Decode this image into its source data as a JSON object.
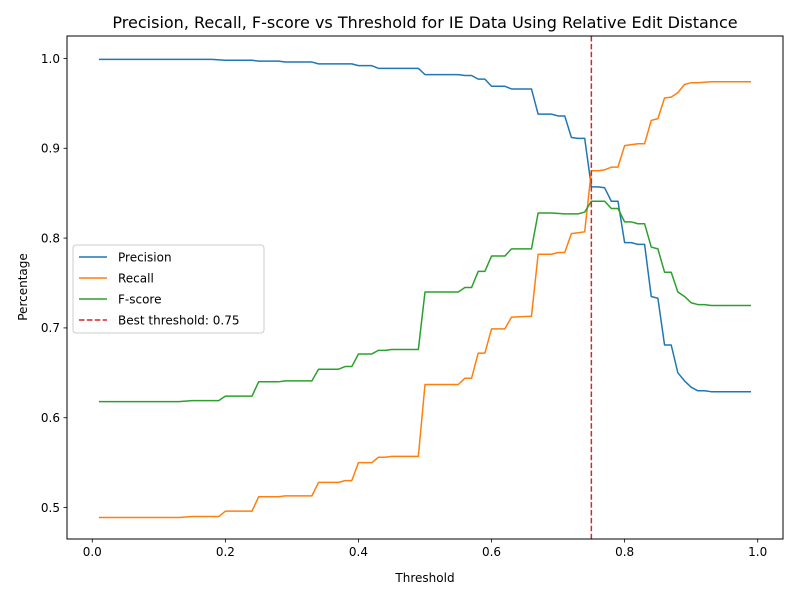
{
  "chart_data": {
    "type": "line",
    "title": "Precision, Recall, F-score vs Threshold for IE Data Using Relative Edit Distance",
    "xlabel": "Threshold",
    "ylabel": "Percentage",
    "xlim": [
      -0.038,
      1.038
    ],
    "ylim": [
      0.465,
      1.025
    ],
    "xticks": [
      0.0,
      0.2,
      0.4,
      0.6,
      0.8,
      1.0
    ],
    "xtick_labels": [
      "0.0",
      "0.2",
      "0.4",
      "0.6",
      "0.8",
      "1.0"
    ],
    "yticks": [
      0.5,
      0.6,
      0.7,
      0.8,
      0.9,
      1.0
    ],
    "ytick_labels": [
      "0.5",
      "0.6",
      "0.7",
      "0.8",
      "0.9",
      "1.0"
    ],
    "grid": false,
    "legend_position": "center-left",
    "series": [
      {
        "name": "Precision",
        "color": "#1f77b4",
        "style": "solid",
        "points": [
          [
            0.01,
            0.999
          ],
          [
            0.1,
            0.999
          ],
          [
            0.18,
            0.999
          ],
          [
            0.2,
            0.998
          ],
          [
            0.24,
            0.998
          ],
          [
            0.25,
            0.997
          ],
          [
            0.28,
            0.997
          ],
          [
            0.29,
            0.996
          ],
          [
            0.33,
            0.996
          ],
          [
            0.34,
            0.994
          ],
          [
            0.39,
            0.994
          ],
          [
            0.4,
            0.992
          ],
          [
            0.42,
            0.992
          ],
          [
            0.43,
            0.989
          ],
          [
            0.48,
            0.989
          ],
          [
            0.49,
            0.989
          ],
          [
            0.5,
            0.982
          ],
          [
            0.55,
            0.982
          ],
          [
            0.56,
            0.981
          ],
          [
            0.57,
            0.981
          ],
          [
            0.58,
            0.977
          ],
          [
            0.59,
            0.977
          ],
          [
            0.6,
            0.969
          ],
          [
            0.62,
            0.969
          ],
          [
            0.63,
            0.966
          ],
          [
            0.66,
            0.966
          ],
          [
            0.67,
            0.938
          ],
          [
            0.69,
            0.938
          ],
          [
            0.7,
            0.936
          ],
          [
            0.71,
            0.936
          ],
          [
            0.72,
            0.912
          ],
          [
            0.73,
            0.911
          ],
          [
            0.74,
            0.911
          ],
          [
            0.75,
            0.857
          ],
          [
            0.76,
            0.857
          ],
          [
            0.77,
            0.856
          ],
          [
            0.78,
            0.841
          ],
          [
            0.79,
            0.841
          ],
          [
            0.8,
            0.795
          ],
          [
            0.81,
            0.795
          ],
          [
            0.82,
            0.793
          ],
          [
            0.83,
            0.793
          ],
          [
            0.84,
            0.735
          ],
          [
            0.85,
            0.733
          ],
          [
            0.86,
            0.681
          ],
          [
            0.87,
            0.681
          ],
          [
            0.88,
            0.65
          ],
          [
            0.89,
            0.641
          ],
          [
            0.9,
            0.634
          ],
          [
            0.91,
            0.63
          ],
          [
            0.92,
            0.63
          ],
          [
            0.93,
            0.629
          ],
          [
            0.99,
            0.629
          ]
        ]
      },
      {
        "name": "Recall",
        "color": "#ff7f0e",
        "style": "solid",
        "points": [
          [
            0.01,
            0.489
          ],
          [
            0.1,
            0.489
          ],
          [
            0.13,
            0.489
          ],
          [
            0.15,
            0.49
          ],
          [
            0.19,
            0.49
          ],
          [
            0.2,
            0.496
          ],
          [
            0.24,
            0.496
          ],
          [
            0.25,
            0.512
          ],
          [
            0.28,
            0.512
          ],
          [
            0.29,
            0.513
          ],
          [
            0.33,
            0.513
          ],
          [
            0.34,
            0.528
          ],
          [
            0.37,
            0.528
          ],
          [
            0.38,
            0.53
          ],
          [
            0.39,
            0.53
          ],
          [
            0.4,
            0.55
          ],
          [
            0.42,
            0.55
          ],
          [
            0.43,
            0.556
          ],
          [
            0.44,
            0.556
          ],
          [
            0.45,
            0.557
          ],
          [
            0.49,
            0.557
          ],
          [
            0.5,
            0.637
          ],
          [
            0.55,
            0.637
          ],
          [
            0.56,
            0.644
          ],
          [
            0.57,
            0.644
          ],
          [
            0.58,
            0.672
          ],
          [
            0.59,
            0.672
          ],
          [
            0.6,
            0.699
          ],
          [
            0.62,
            0.699
          ],
          [
            0.63,
            0.712
          ],
          [
            0.66,
            0.713
          ],
          [
            0.67,
            0.782
          ],
          [
            0.69,
            0.782
          ],
          [
            0.7,
            0.784
          ],
          [
            0.71,
            0.784
          ],
          [
            0.72,
            0.805
          ],
          [
            0.73,
            0.806
          ],
          [
            0.74,
            0.807
          ],
          [
            0.75,
            0.875
          ],
          [
            0.76,
            0.875
          ],
          [
            0.77,
            0.876
          ],
          [
            0.78,
            0.879
          ],
          [
            0.79,
            0.879
          ],
          [
            0.8,
            0.903
          ],
          [
            0.81,
            0.904
          ],
          [
            0.82,
            0.905
          ],
          [
            0.83,
            0.905
          ],
          [
            0.84,
            0.931
          ],
          [
            0.85,
            0.933
          ],
          [
            0.86,
            0.956
          ],
          [
            0.87,
            0.957
          ],
          [
            0.88,
            0.962
          ],
          [
            0.89,
            0.971
          ],
          [
            0.9,
            0.973
          ],
          [
            0.91,
            0.973
          ],
          [
            0.93,
            0.974
          ],
          [
            0.99,
            0.974
          ]
        ]
      },
      {
        "name": "F-score",
        "color": "#2ca02c",
        "style": "solid",
        "points": [
          [
            0.01,
            0.618
          ],
          [
            0.1,
            0.618
          ],
          [
            0.13,
            0.618
          ],
          [
            0.15,
            0.619
          ],
          [
            0.19,
            0.619
          ],
          [
            0.2,
            0.624
          ],
          [
            0.24,
            0.624
          ],
          [
            0.25,
            0.64
          ],
          [
            0.28,
            0.64
          ],
          [
            0.29,
            0.641
          ],
          [
            0.33,
            0.641
          ],
          [
            0.34,
            0.654
          ],
          [
            0.37,
            0.654
          ],
          [
            0.38,
            0.657
          ],
          [
            0.39,
            0.657
          ],
          [
            0.4,
            0.671
          ],
          [
            0.42,
            0.671
          ],
          [
            0.43,
            0.675
          ],
          [
            0.44,
            0.675
          ],
          [
            0.45,
            0.676
          ],
          [
            0.49,
            0.676
          ],
          [
            0.5,
            0.74
          ],
          [
            0.55,
            0.74
          ],
          [
            0.56,
            0.745
          ],
          [
            0.57,
            0.745
          ],
          [
            0.58,
            0.763
          ],
          [
            0.59,
            0.763
          ],
          [
            0.6,
            0.78
          ],
          [
            0.62,
            0.78
          ],
          [
            0.63,
            0.788
          ],
          [
            0.66,
            0.788
          ],
          [
            0.67,
            0.828
          ],
          [
            0.69,
            0.828
          ],
          [
            0.71,
            0.827
          ],
          [
            0.73,
            0.827
          ],
          [
            0.74,
            0.829
          ],
          [
            0.75,
            0.841
          ],
          [
            0.77,
            0.841
          ],
          [
            0.78,
            0.833
          ],
          [
            0.79,
            0.833
          ],
          [
            0.8,
            0.818
          ],
          [
            0.81,
            0.818
          ],
          [
            0.82,
            0.816
          ],
          [
            0.83,
            0.816
          ],
          [
            0.84,
            0.79
          ],
          [
            0.85,
            0.788
          ],
          [
            0.86,
            0.762
          ],
          [
            0.87,
            0.762
          ],
          [
            0.88,
            0.74
          ],
          [
            0.89,
            0.735
          ],
          [
            0.9,
            0.728
          ],
          [
            0.91,
            0.726
          ],
          [
            0.92,
            0.726
          ],
          [
            0.93,
            0.725
          ],
          [
            0.99,
            0.725
          ]
        ]
      }
    ],
    "reference_line": {
      "name": "Best threshold: 0.75",
      "x": 0.75,
      "color": "#d62728",
      "style": "dashed"
    }
  }
}
